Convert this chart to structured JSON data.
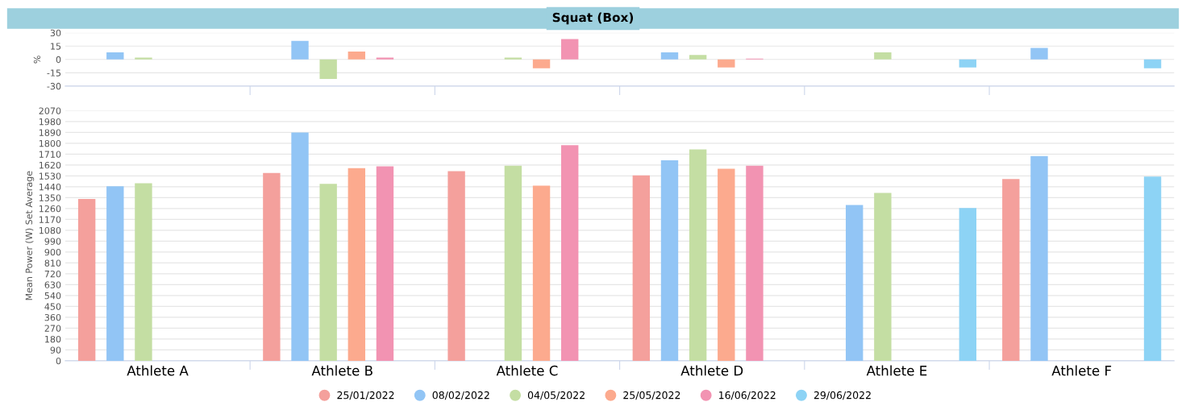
{
  "chart_data": [
    {
      "type": "bar",
      "title": "Squat (Box)",
      "ylabel": "%",
      "categories": [
        null,
        null,
        null,
        null,
        null,
        null
      ],
      "ylim": [
        -30,
        30
      ],
      "yticks": [
        -30,
        -15,
        0,
        15,
        30
      ],
      "grid": "y",
      "tick_labels": "y",
      "legend": false,
      "series": [
        {
          "color": "#92c5f5",
          "values": [
            8,
            21,
            null,
            8,
            null,
            13
          ]
        },
        {
          "color": "#c4dea3",
          "values": [
            2,
            -22,
            2,
            5,
            8,
            null
          ]
        },
        {
          "color": "#fcaa8e",
          "values": [
            null,
            9,
            -10,
            -9,
            null,
            null
          ]
        },
        {
          "color": "#f293b2",
          "values": [
            null,
            2,
            23,
            1,
            null,
            null
          ]
        },
        {
          "color": "#8dd3f5",
          "values": [
            null,
            null,
            null,
            null,
            -9,
            -10
          ]
        }
      ]
    },
    {
      "type": "bar",
      "ylabel": "Mean Power (W) Set Average",
      "categories": [
        "Athlete A",
        "Athlete B",
        "Athlete C",
        "Athlete D",
        "Athlete E",
        "Athlete F"
      ],
      "ylim": [
        0,
        2070
      ],
      "yticks": [
        0,
        90,
        180,
        270,
        360,
        450,
        540,
        630,
        720,
        810,
        900,
        990,
        1080,
        1170,
        1260,
        1350,
        1440,
        1530,
        1620,
        1710,
        1800,
        1890,
        1980,
        2070
      ],
      "grid": "y",
      "legend": "bottom",
      "series": [
        {
          "name": "25/01/2022",
          "color": "#f4a09c",
          "values": [
            1340,
            1555,
            1570,
            1535,
            null,
            1505
          ]
        },
        {
          "name": "08/02/2022",
          "color": "#92c5f5",
          "values": [
            1445,
            1890,
            null,
            1660,
            1290,
            1695
          ]
        },
        {
          "name": "04/05/2022",
          "color": "#c4dea3",
          "values": [
            1470,
            1465,
            1615,
            1750,
            1390,
            null
          ]
        },
        {
          "name": "25/05/2022",
          "color": "#fcaa8e",
          "values": [
            null,
            1595,
            1450,
            1590,
            null,
            null
          ]
        },
        {
          "name": "16/06/2022",
          "color": "#f293b2",
          "values": [
            null,
            1610,
            1785,
            1615,
            null,
            null
          ]
        },
        {
          "name": "29/06/2022",
          "color": "#8dd3f5",
          "values": [
            null,
            null,
            null,
            null,
            1265,
            1525
          ]
        }
      ]
    }
  ]
}
